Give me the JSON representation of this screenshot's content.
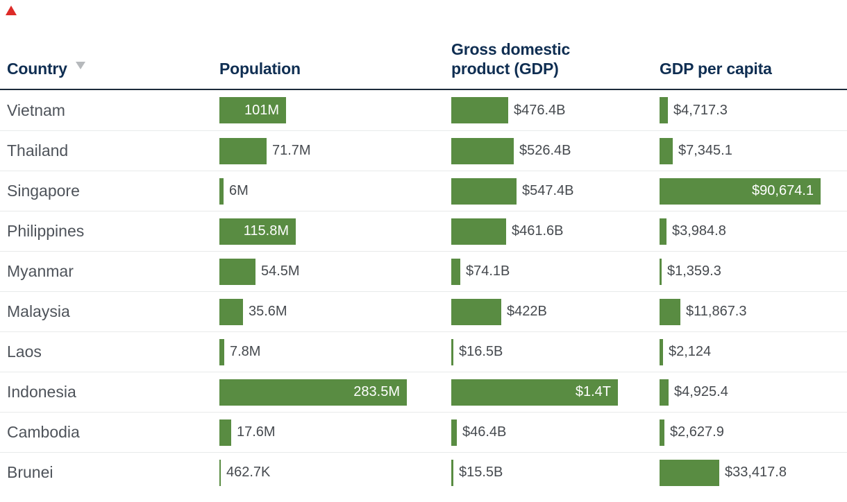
{
  "page": {
    "background": "#ffffff",
    "marker_color": "#dd2b28"
  },
  "chart_data": {
    "type": "table",
    "subtype": "table-with-inline-horizontal-bars",
    "title": "",
    "bar_color": "#598c42",
    "header_text_color": "#0f2e52",
    "sort": {
      "column": "Country",
      "direction": "desc"
    },
    "legend": "none",
    "grid": "off",
    "columns": [
      {
        "key": "country",
        "label": "Country",
        "sortable": true,
        "sort_indicator": "down-triangle"
      },
      {
        "key": "population",
        "label": "Population",
        "value_unit": "millions of people",
        "column_max_value": 283.5
      },
      {
        "key": "gdp",
        "label": "Gross domestic product (GDP)",
        "value_unit": "USD billions",
        "column_max_value": 1400
      },
      {
        "key": "gdp_per_capita",
        "label": "GDP per capita",
        "value_unit": "USD",
        "column_max_value": 90674.1
      }
    ],
    "rows": [
      {
        "country": "Vietnam",
        "population": {
          "label": "101M",
          "value": 101,
          "label_inside": true
        },
        "gdp": {
          "label": "$476.4B",
          "value": 476.4,
          "label_inside": false
        },
        "gdp_per_capita": {
          "label": "$4,717.3",
          "value": 4717.3,
          "label_inside": false
        }
      },
      {
        "country": "Thailand",
        "population": {
          "label": "71.7M",
          "value": 71.7,
          "label_inside": false
        },
        "gdp": {
          "label": "$526.4B",
          "value": 526.4,
          "label_inside": false
        },
        "gdp_per_capita": {
          "label": "$7,345.1",
          "value": 7345.1,
          "label_inside": false
        }
      },
      {
        "country": "Singapore",
        "population": {
          "label": "6M",
          "value": 6,
          "label_inside": false
        },
        "gdp": {
          "label": "$547.4B",
          "value": 547.4,
          "label_inside": false
        },
        "gdp_per_capita": {
          "label": "$90,674.1",
          "value": 90674.1,
          "label_inside": true
        }
      },
      {
        "country": "Philippines",
        "population": {
          "label": "115.8M",
          "value": 115.8,
          "label_inside": true
        },
        "gdp": {
          "label": "$461.6B",
          "value": 461.6,
          "label_inside": false
        },
        "gdp_per_capita": {
          "label": "$3,984.8",
          "value": 3984.8,
          "label_inside": false
        }
      },
      {
        "country": "Myanmar",
        "population": {
          "label": "54.5M",
          "value": 54.5,
          "label_inside": false
        },
        "gdp": {
          "label": "$74.1B",
          "value": 74.1,
          "label_inside": false
        },
        "gdp_per_capita": {
          "label": "$1,359.3",
          "value": 1359.3,
          "label_inside": false
        }
      },
      {
        "country": "Malaysia",
        "population": {
          "label": "35.6M",
          "value": 35.6,
          "label_inside": false
        },
        "gdp": {
          "label": "$422B",
          "value": 422,
          "label_inside": false
        },
        "gdp_per_capita": {
          "label": "$11,867.3",
          "value": 11867.3,
          "label_inside": false
        }
      },
      {
        "country": "Laos",
        "population": {
          "label": "7.8M",
          "value": 7.8,
          "label_inside": false
        },
        "gdp": {
          "label": "$16.5B",
          "value": 16.5,
          "label_inside": false
        },
        "gdp_per_capita": {
          "label": "$2,124",
          "value": 2124,
          "label_inside": false
        }
      },
      {
        "country": "Indonesia",
        "population": {
          "label": "283.5M",
          "value": 283.5,
          "label_inside": true
        },
        "gdp": {
          "label": "$1.4T",
          "value": 1400,
          "label_inside": true
        },
        "gdp_per_capita": {
          "label": "$4,925.4",
          "value": 4925.4,
          "label_inside": false
        }
      },
      {
        "country": "Cambodia",
        "population": {
          "label": "17.6M",
          "value": 17.6,
          "label_inside": false
        },
        "gdp": {
          "label": "$46.4B",
          "value": 46.4,
          "label_inside": false
        },
        "gdp_per_capita": {
          "label": "$2,627.9",
          "value": 2627.9,
          "label_inside": false
        }
      },
      {
        "country": "Brunei",
        "population": {
          "label": "462.7K",
          "value": 0.4627,
          "label_inside": false
        },
        "gdp": {
          "label": "$15.5B",
          "value": 15.5,
          "label_inside": false
        },
        "gdp_per_capita": {
          "label": "$33,417.8",
          "value": 33417.8,
          "label_inside": false
        }
      }
    ]
  }
}
